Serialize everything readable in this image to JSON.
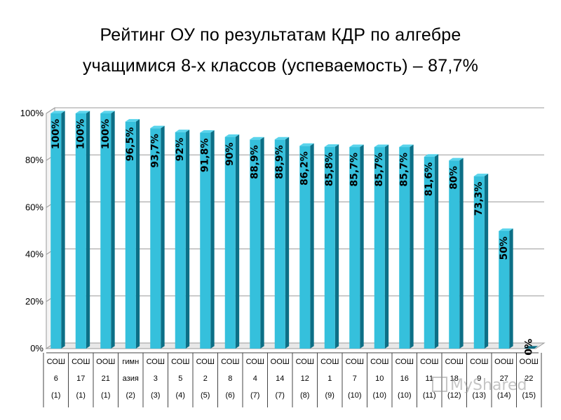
{
  "title": {
    "line1": "Рейтинг ОУ по результатам КДР по алгебре",
    "line2": "учащимися 8-х классов (успеваемость) – 87,7%"
  },
  "colors": {
    "bar_front": "#35c0dc",
    "bar_side": "#0c6f86",
    "bar_top": "#5ad4ec",
    "grid": "#9a9a9a",
    "text": "#000000"
  },
  "watermark": "MyShared",
  "chart_data": {
    "type": "bar",
    "title": "Рейтинг ОУ по результатам КДР по алгебре учащимися 8-х классов (успеваемость) – 87,7%",
    "ylim": [
      0,
      100
    ],
    "yticks": [
      "0%",
      "20%",
      "40%",
      "60%",
      "80%",
      "100%"
    ],
    "grid": true,
    "legend": "none",
    "categories": [
      {
        "type": "СОШ",
        "num": "6",
        "rank": "(1)"
      },
      {
        "type": "СОШ",
        "num": "17",
        "rank": "(1)"
      },
      {
        "type": "ООШ",
        "num": "21",
        "rank": "(1)"
      },
      {
        "type": "гимн",
        "num": "азия",
        "rank": "(2)"
      },
      {
        "type": "СОШ",
        "num": "3",
        "rank": "(3)"
      },
      {
        "type": "СОШ",
        "num": "5",
        "rank": "(4)"
      },
      {
        "type": "СОШ",
        "num": "2",
        "rank": "(5)"
      },
      {
        "type": "СОШ",
        "num": "8",
        "rank": "(6)"
      },
      {
        "type": "СОШ",
        "num": "4",
        "rank": "(7)"
      },
      {
        "type": "ООШ",
        "num": "14",
        "rank": "(7)"
      },
      {
        "type": "СОШ",
        "num": "12",
        "rank": "(8)"
      },
      {
        "type": "СОШ",
        "num": "1",
        "rank": "(9)"
      },
      {
        "type": "СОШ",
        "num": "7",
        "rank": "(10)"
      },
      {
        "type": "СОШ",
        "num": "10",
        "rank": "(10)"
      },
      {
        "type": "СОШ",
        "num": "16",
        "rank": "(10)"
      },
      {
        "type": "СОШ",
        "num": "11",
        "rank": "(11)"
      },
      {
        "type": "СОШ",
        "num": "18",
        "rank": "(12)"
      },
      {
        "type": "СОШ",
        "num": "9",
        "rank": "(13)"
      },
      {
        "type": "ООШ",
        "num": "27",
        "rank": "(14)"
      },
      {
        "type": "ООШ",
        "num": "22",
        "rank": "(15)"
      }
    ],
    "values": [
      100,
      100,
      100,
      96.5,
      93.7,
      92,
      91.8,
      90,
      88.9,
      88.9,
      86.2,
      85.8,
      85.7,
      85.7,
      85.7,
      81.6,
      80,
      73.3,
      50,
      0
    ],
    "value_labels": [
      "100%",
      "100%",
      "100%",
      "96,5%",
      "93,7%",
      "92%",
      "91,8%",
      "90%",
      "88,9%",
      "88,9%",
      "86,2%",
      "85,8%",
      "85,7%",
      "85,7%",
      "85,7%",
      "81,6%",
      "80%",
      "73,3%",
      "50%",
      "0%"
    ]
  }
}
